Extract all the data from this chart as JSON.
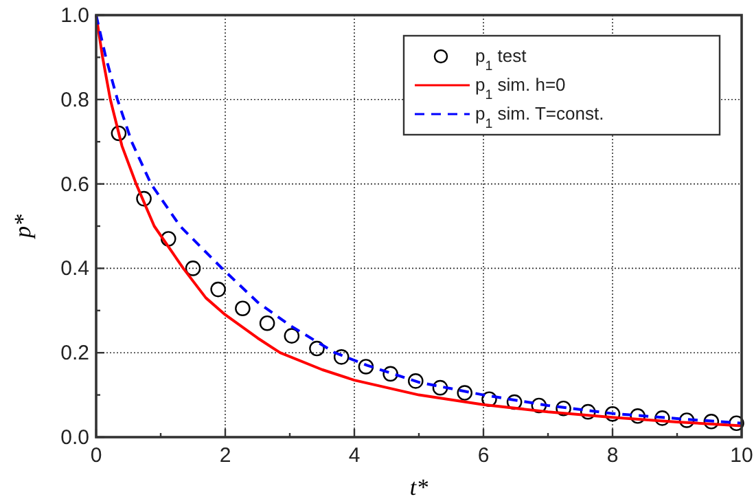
{
  "chart_data": {
    "type": "scatter",
    "xlabel": "t*",
    "ylabel": "p*",
    "xlim": [
      0,
      10
    ],
    "ylim": [
      0,
      1
    ],
    "xticks": [
      0,
      {
        "value": 1,
        "label": null
      },
      2,
      {
        "value": 3,
        "label": null
      },
      4,
      {
        "value": 5,
        "label": null
      },
      6,
      {
        "value": 7,
        "label": null
      },
      8,
      {
        "value": 9,
        "label": null
      },
      10
    ],
    "yticks": [
      "0.0",
      {
        "value": 0.1,
        "label": null
      },
      0.2,
      {
        "value": 0.3,
        "label": null
      },
      0.4,
      {
        "value": 0.5,
        "label": null
      },
      0.6,
      {
        "value": 0.7,
        "label": null
      },
      0.8,
      {
        "value": 0.9,
        "label": null
      },
      "1.0"
    ],
    "grid": true,
    "legend": "top right",
    "series": [
      {
        "name": "p$_{1}$ test",
        "marker": "circle",
        "color": "#000000",
        "x": [
          0.35,
          0.74,
          1.12,
          1.5,
          1.89,
          2.27,
          2.65,
          3.03,
          3.42,
          3.8,
          4.18,
          4.56,
          4.95,
          5.33,
          5.71,
          6.09,
          6.48,
          6.86,
          7.24,
          7.62,
          8.0,
          8.39,
          8.77,
          9.15,
          9.53,
          9.92
        ],
        "values": [
          0.72,
          0.565,
          0.47,
          0.4,
          0.35,
          0.305,
          0.27,
          0.24,
          0.21,
          0.19,
          0.167,
          0.15,
          0.133,
          0.117,
          0.105,
          0.09,
          0.083,
          0.075,
          0.068,
          0.06,
          0.055,
          0.05,
          0.045,
          0.04,
          0.037,
          0.033
        ]
      },
      {
        "name": "p$_{1}$ sim. h=0",
        "type": "line",
        "line_style": "solid",
        "marker": "none",
        "color": "#ff0000",
        "x": [
          0,
          0.1,
          0.22,
          0.4,
          0.62,
          0.9,
          1.35,
          1.7,
          2,
          2.5,
          2.85,
          3.5,
          4,
          5,
          6,
          7,
          8,
          9,
          10
        ],
        "values": [
          1,
          0.9,
          0.8,
          0.69,
          0.6,
          0.5,
          0.4,
          0.33,
          0.29,
          0.235,
          0.2,
          0.16,
          0.135,
          0.1,
          0.077,
          0.06,
          0.047,
          0.036,
          0.027
        ]
      },
      {
        "name": "p$_{1}$ sim. T=const.",
        "type": "line",
        "line_style": "dashed",
        "marker": "none",
        "color": "#0000ff",
        "x": [
          0,
          0.15,
          0.33,
          0.55,
          0.85,
          1.3,
          1.95,
          2.5,
          3,
          3.7,
          4.2,
          5,
          6,
          7,
          8,
          9,
          10
        ],
        "values": [
          1,
          0.9,
          0.8,
          0.7,
          0.6,
          0.5,
          0.4,
          0.32,
          0.265,
          0.2,
          0.17,
          0.13,
          0.1,
          0.075,
          0.056,
          0.044,
          0.033
        ]
      }
    ]
  }
}
